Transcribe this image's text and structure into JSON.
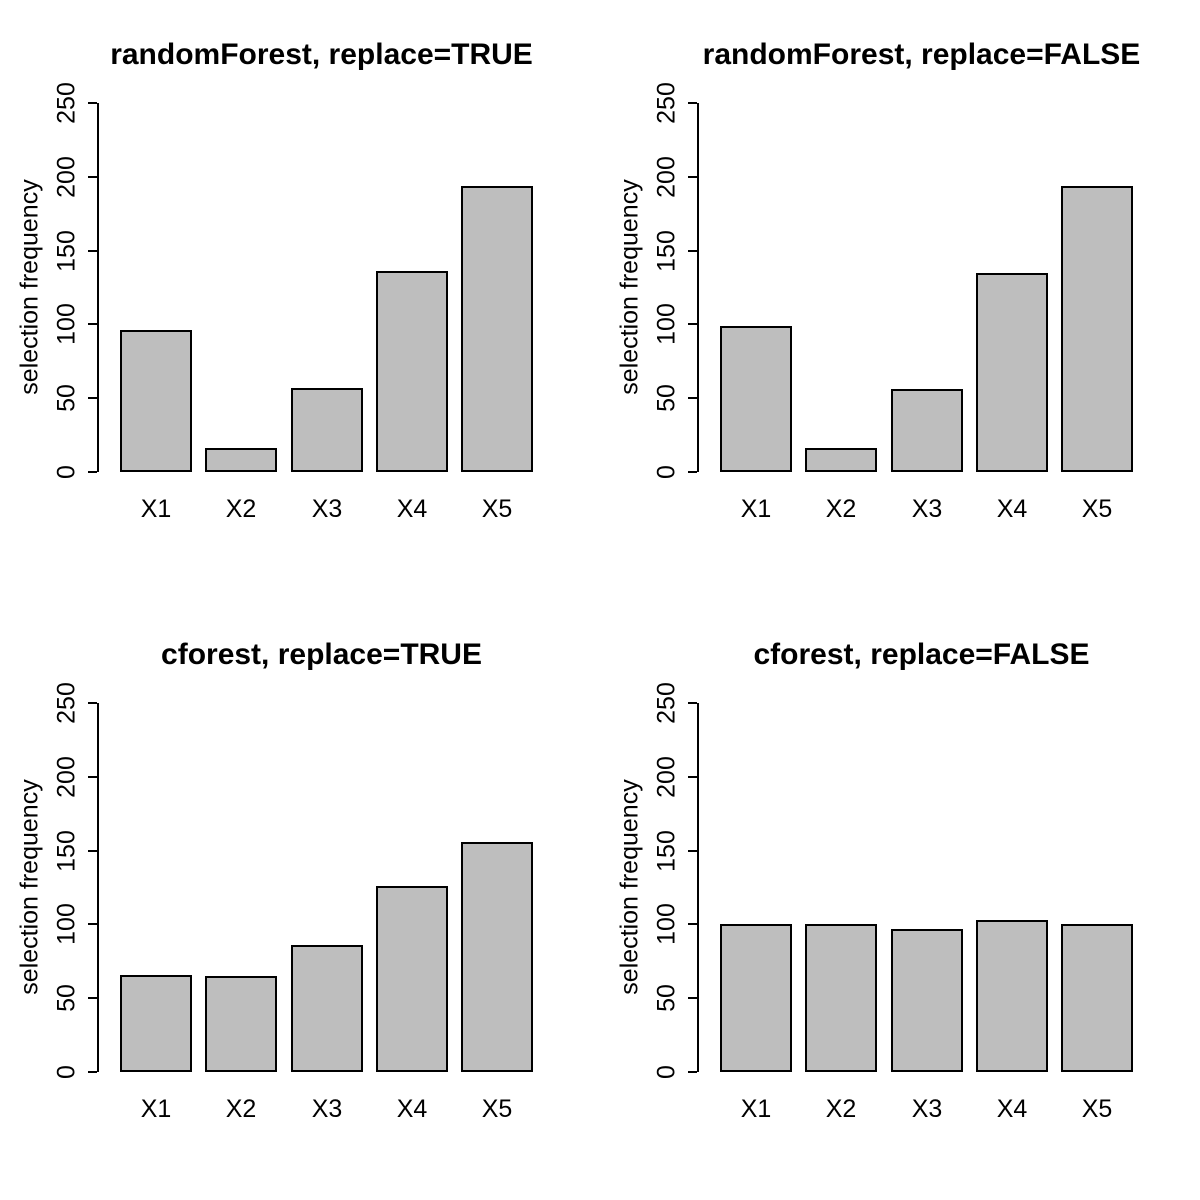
{
  "figure": {
    "background": "#ffffff",
    "text_color": "#000000",
    "layout": "2x2 grid of base-R style barplots"
  },
  "colors": {
    "bar_fill": "#bebebe",
    "bar_border": "#000000",
    "axis": "#000000"
  },
  "chart_data": [
    {
      "type": "bar",
      "title": "randomForest, replace=TRUE",
      "xlabel": "",
      "ylabel": "selection frequency",
      "categories": [
        "X1",
        "X2",
        "X3",
        "X4",
        "X5"
      ],
      "values": [
        96,
        16,
        57,
        136,
        194
      ],
      "ylim": [
        0,
        250
      ],
      "yticks": [
        0,
        50,
        100,
        150,
        200,
        250
      ],
      "grid": false,
      "legend": null
    },
    {
      "type": "bar",
      "title": "randomForest, replace=FALSE",
      "xlabel": "",
      "ylabel": "selection frequency",
      "categories": [
        "X1",
        "X2",
        "X3",
        "X4",
        "X5"
      ],
      "values": [
        99,
        16,
        56,
        135,
        194
      ],
      "ylim": [
        0,
        250
      ],
      "yticks": [
        0,
        50,
        100,
        150,
        200,
        250
      ],
      "grid": false,
      "legend": null
    },
    {
      "type": "bar",
      "title": "cforest, replace=TRUE",
      "xlabel": "",
      "ylabel": "selection frequency",
      "categories": [
        "X1",
        "X2",
        "X3",
        "X4",
        "X5"
      ],
      "values": [
        66,
        65,
        86,
        126,
        156
      ],
      "ylim": [
        0,
        250
      ],
      "yticks": [
        0,
        50,
        100,
        150,
        200,
        250
      ],
      "grid": false,
      "legend": null
    },
    {
      "type": "bar",
      "title": "cforest, replace=FALSE",
      "xlabel": "",
      "ylabel": "selection frequency",
      "categories": [
        "X1",
        "X2",
        "X3",
        "X4",
        "X5"
      ],
      "values": [
        100,
        100,
        97,
        103,
        100
      ],
      "ylim": [
        0,
        250
      ],
      "yticks": [
        0,
        50,
        100,
        150,
        200,
        250
      ],
      "grid": false,
      "legend": null
    }
  ]
}
